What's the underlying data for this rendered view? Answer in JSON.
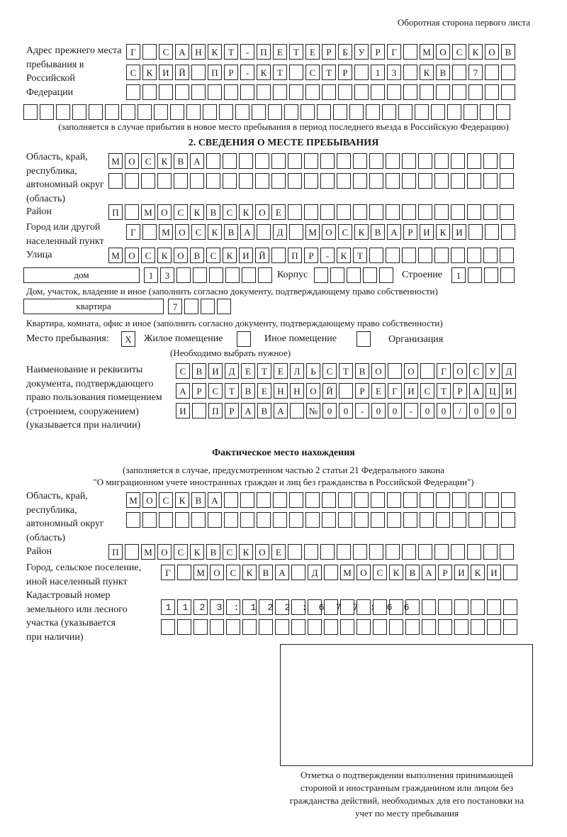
{
  "header": {
    "page_side": "Оборотная сторона первого листа"
  },
  "previous_address": {
    "label": "Адрес прежнего места пребывания в Российской Федерации",
    "rows": [
      "Г САНКТ-ПЕТЕРБУРГ МОСКОВ",
      "СКИЙ ПР-КТ СТР 13 КВ 7",
      "",
      ""
    ],
    "note": "(заполняется в случае прибытия в новое место пребывания в период последнего въезда в Российскую Федерацию)"
  },
  "section2": {
    "title": "2. СВЕДЕНИЯ О МЕСТЕ ПРЕБЫВАНИЯ",
    "region_label": "Область, край, республика, автономный округ (область)",
    "region_rows": [
      "МОСКВА",
      ""
    ],
    "district_label": "Район",
    "district": "П МОСКВСКОЕ",
    "city_label": "Город или другой населенный пункт",
    "city": "Г МОСКВА Д МОСКВАРИКИ",
    "street_label": "Улица",
    "street": "МОСКОВСКИЙ ПР-КТ",
    "house_type": "дом",
    "house_number": "13",
    "korpus_label": "Корпус",
    "korpus": "",
    "building_label": "Строение",
    "building": "1",
    "house_note": "Дом, участок, владение и иное (заполнить согласно документу, подтверждающему право собственности)",
    "apartment_type": "квартира",
    "apartment_number": "7",
    "apartment_note": "Квартира, комната, офис и иное (заполнить согласно документу, подтверждающему право собственности)",
    "stay_place_label": "Место пребывания:",
    "stay_options": [
      {
        "label": "Жилое помещение",
        "mark": "X"
      },
      {
        "label": "Иное помещение",
        "mark": ""
      },
      {
        "label": "Организация",
        "mark": ""
      }
    ],
    "stay_note": "(Необходимо выбрать нужное)",
    "document_label": "Наименование и реквизиты документа, подтверждающего право пользования помещением (строением, сооружением) (указывается при наличии)",
    "document_rows": [
      "СВИДЕТЕЛЬСТВО О ГОСУД",
      "АРСТВЕННОЙ РЕГИСТРАЦИ",
      "И ПРАВА №00-00-00/000"
    ]
  },
  "actual_location": {
    "title": "Фактическое место нахождения",
    "note_line1": "(заполняется в случае, предусмотренном частью 2 статьи 21 Федерального закона",
    "note_line2": "\"О миграционном учете иностранных граждан и лиц без гражданства в Российской Федерации\")",
    "region_label": "Область, край, республика, автономный округ (область)",
    "region_rows": [
      "МОСКВА",
      ""
    ],
    "district_label": "Район",
    "district": "П МОСКВСКОЕ",
    "city_label": "Город, сельское поселение, иной населенный пункт",
    "city": "Г МОСКВА Д МОСКВАРИКИ",
    "cadastral_label": "Кадастровый номер земельного или лесного участка (указывается при наличии)",
    "cadastral_rows": [
      "1123:122:677:66",
      ""
    ]
  },
  "confirmation": {
    "caption": "Отметка о подтверждении выполнения принимающей стороной и иностранным гражданином или лицом без гражданства действий, необходимых для его постановки на учет по месту пребывания"
  }
}
